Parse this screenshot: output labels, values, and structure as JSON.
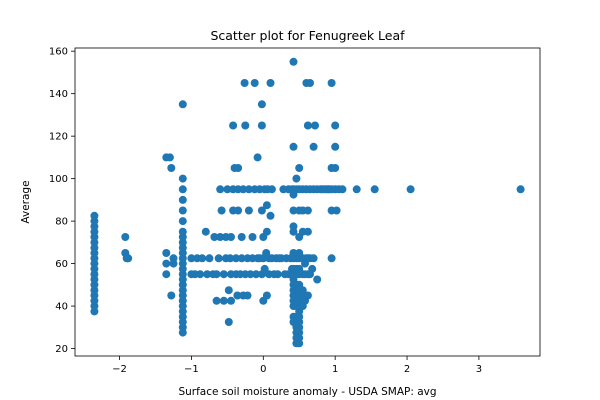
{
  "chart_data": {
    "type": "scatter",
    "title": "Scatter plot for Fenugreek Leaf",
    "xlabel": "Surface soil moisture anomaly  - USDA SMAP: avg",
    "ylabel": "Average",
    "xlim": [
      -2.62,
      3.85
    ],
    "ylim": [
      16.5,
      161.5
    ],
    "xticks": [
      -2,
      -1,
      0,
      1,
      2,
      3
    ],
    "yticks": [
      20,
      40,
      60,
      80,
      100,
      120,
      140,
      160
    ],
    "xtick_labels": [
      "−2",
      "−1",
      "0",
      "1",
      "2",
      "3"
    ],
    "ytick_labels": [
      "20",
      "40",
      "60",
      "80",
      "100",
      "120",
      "140",
      "160"
    ],
    "grid": false,
    "color": "#1f77b4",
    "series": [
      {
        "points": [
          [
            -2.35,
            37.5
          ],
          [
            -2.35,
            40
          ],
          [
            -2.35,
            42.5
          ],
          [
            -2.35,
            45
          ],
          [
            -2.35,
            47.5
          ],
          [
            -2.35,
            50
          ],
          [
            -2.35,
            52.5
          ],
          [
            -2.35,
            55
          ],
          [
            -2.35,
            57.5
          ],
          [
            -2.35,
            60
          ],
          [
            -2.35,
            62.5
          ],
          [
            -2.35,
            65
          ],
          [
            -2.35,
            67.5
          ],
          [
            -2.35,
            70
          ],
          [
            -2.35,
            72.5
          ],
          [
            -2.35,
            75
          ],
          [
            -2.35,
            77.5
          ],
          [
            -2.35,
            80
          ],
          [
            -2.35,
            82.5
          ],
          [
            -1.92,
            72.5
          ],
          [
            -1.92,
            65
          ],
          [
            -1.9,
            62.5
          ],
          [
            -1.88,
            62.5
          ],
          [
            -1.35,
            55
          ],
          [
            -1.35,
            60
          ],
          [
            -1.35,
            65
          ],
          [
            -1.35,
            110
          ],
          [
            -1.3,
            110
          ],
          [
            -1.28,
            105
          ],
          [
            -1.28,
            45
          ],
          [
            -1.25,
            62.5
          ],
          [
            -1.25,
            60
          ],
          [
            -1.12,
            27.5
          ],
          [
            -1.12,
            30
          ],
          [
            -1.12,
            32.5
          ],
          [
            -1.12,
            35
          ],
          [
            -1.12,
            37.5
          ],
          [
            -1.12,
            40
          ],
          [
            -1.12,
            42.5
          ],
          [
            -1.12,
            45
          ],
          [
            -1.12,
            47.5
          ],
          [
            -1.12,
            50
          ],
          [
            -1.12,
            52.5
          ],
          [
            -1.12,
            55
          ],
          [
            -1.12,
            57.5
          ],
          [
            -1.12,
            60
          ],
          [
            -1.12,
            62.5
          ],
          [
            -1.12,
            65
          ],
          [
            -1.12,
            67.5
          ],
          [
            -1.12,
            70
          ],
          [
            -1.12,
            72.5
          ],
          [
            -1.12,
            75
          ],
          [
            -1.12,
            80
          ],
          [
            -1.12,
            85
          ],
          [
            -1.12,
            90
          ],
          [
            -1.12,
            95
          ],
          [
            -1.12,
            100
          ],
          [
            -1.12,
            135
          ],
          [
            -1.0,
            55
          ],
          [
            -1.0,
            62.5
          ],
          [
            -0.95,
            55
          ],
          [
            -0.92,
            62.5
          ],
          [
            -0.88,
            55
          ],
          [
            -0.85,
            62.5
          ],
          [
            -0.8,
            75
          ],
          [
            -0.78,
            55
          ],
          [
            -0.75,
            62.5
          ],
          [
            -0.7,
            55
          ],
          [
            -0.68,
            72.5
          ],
          [
            -0.65,
            42.5
          ],
          [
            -0.65,
            55
          ],
          [
            -0.62,
            62.5
          ],
          [
            -0.6,
            72.5
          ],
          [
            -0.6,
            95
          ],
          [
            -0.58,
            85
          ],
          [
            -0.55,
            55
          ],
          [
            -0.55,
            42.5
          ],
          [
            -0.52,
            62.5
          ],
          [
            -0.52,
            72.5
          ],
          [
            -0.5,
            95
          ],
          [
            -0.48,
            32.5
          ],
          [
            -0.48,
            47.5
          ],
          [
            -0.46,
            62.5
          ],
          [
            -0.45,
            42.5
          ],
          [
            -0.45,
            55
          ],
          [
            -0.45,
            72.5
          ],
          [
            -0.42,
            85
          ],
          [
            -0.42,
            95
          ],
          [
            -0.42,
            125
          ],
          [
            -0.4,
            105
          ],
          [
            -0.38,
            55
          ],
          [
            -0.38,
            62.5
          ],
          [
            -0.36,
            45
          ],
          [
            -0.35,
            85
          ],
          [
            -0.35,
            95
          ],
          [
            -0.35,
            105
          ],
          [
            -0.32,
            55
          ],
          [
            -0.3,
            62.5
          ],
          [
            -0.3,
            72.5
          ],
          [
            -0.28,
            45
          ],
          [
            -0.28,
            95
          ],
          [
            -0.26,
            145
          ],
          [
            -0.25,
            55
          ],
          [
            -0.25,
            125
          ],
          [
            -0.22,
            45
          ],
          [
            -0.22,
            62.5
          ],
          [
            -0.2,
            85
          ],
          [
            -0.2,
            95
          ],
          [
            -0.18,
            55
          ],
          [
            -0.15,
            62.5
          ],
          [
            -0.15,
            72.5
          ],
          [
            -0.12,
            95
          ],
          [
            -0.12,
            145
          ],
          [
            -0.1,
            55
          ],
          [
            -0.08,
            62.5
          ],
          [
            -0.08,
            110
          ],
          [
            -0.05,
            95
          ],
          [
            -0.05,
            62.5
          ],
          [
            -0.02,
            55
          ],
          [
            -0.02,
            85
          ],
          [
            -0.02,
            125
          ],
          [
            -0.02,
            135
          ],
          [
            0.0,
            42.5
          ],
          [
            0.0,
            62.5
          ],
          [
            0.0,
            72.5
          ],
          [
            0.02,
            57.5
          ],
          [
            0.02,
            95
          ],
          [
            0.04,
            65
          ],
          [
            0.05,
            45
          ],
          [
            0.05,
            75
          ],
          [
            0.05,
            87.5
          ],
          [
            0.06,
            95
          ],
          [
            0.08,
            55
          ],
          [
            0.08,
            62.5
          ],
          [
            0.1,
            82.5
          ],
          [
            0.1,
            145
          ],
          [
            0.12,
            62.5
          ],
          [
            0.12,
            95
          ],
          [
            0.15,
            55
          ],
          [
            0.18,
            62.5
          ],
          [
            0.2,
            55
          ],
          [
            0.22,
            62.5
          ],
          [
            0.25,
            62.5
          ],
          [
            0.28,
            95
          ],
          [
            0.3,
            55
          ],
          [
            0.32,
            62.5
          ],
          [
            0.35,
            55
          ],
          [
            0.35,
            95
          ],
          [
            0.38,
            62.5
          ],
          [
            0.4,
            95
          ],
          [
            0.4,
            57.5
          ],
          [
            0.42,
            32.5
          ],
          [
            0.42,
            35
          ],
          [
            0.42,
            40
          ],
          [
            0.42,
            42.5
          ],
          [
            0.42,
            45
          ],
          [
            0.42,
            47.5
          ],
          [
            0.42,
            50
          ],
          [
            0.42,
            52.5
          ],
          [
            0.42,
            55
          ],
          [
            0.42,
            57.5
          ],
          [
            0.42,
            62.5
          ],
          [
            0.42,
            65
          ],
          [
            0.42,
            75
          ],
          [
            0.42,
            77.5
          ],
          [
            0.42,
            85
          ],
          [
            0.42,
            92.5
          ],
          [
            0.42,
            95
          ],
          [
            0.42,
            115
          ],
          [
            0.42,
            155
          ],
          [
            0.46,
            22.5
          ],
          [
            0.46,
            25
          ],
          [
            0.46,
            27.5
          ],
          [
            0.46,
            30
          ],
          [
            0.46,
            35
          ],
          [
            0.46,
            40
          ],
          [
            0.46,
            42.5
          ],
          [
            0.46,
            45
          ],
          [
            0.46,
            47.5
          ],
          [
            0.46,
            50
          ],
          [
            0.46,
            55
          ],
          [
            0.46,
            57.5
          ],
          [
            0.46,
            62.5
          ],
          [
            0.46,
            95
          ],
          [
            0.46,
            100
          ],
          [
            0.5,
            22.5
          ],
          [
            0.5,
            25
          ],
          [
            0.5,
            27.5
          ],
          [
            0.5,
            30
          ],
          [
            0.5,
            32.5
          ],
          [
            0.5,
            35
          ],
          [
            0.5,
            37.5
          ],
          [
            0.5,
            40
          ],
          [
            0.5,
            42.5
          ],
          [
            0.5,
            45
          ],
          [
            0.5,
            47.5
          ],
          [
            0.5,
            50
          ],
          [
            0.5,
            55
          ],
          [
            0.5,
            57.5
          ],
          [
            0.5,
            62.5
          ],
          [
            0.5,
            65
          ],
          [
            0.5,
            72.5
          ],
          [
            0.5,
            85
          ],
          [
            0.5,
            95
          ],
          [
            0.5,
            105
          ],
          [
            0.55,
            40
          ],
          [
            0.55,
            45
          ],
          [
            0.55,
            47.5
          ],
          [
            0.55,
            55
          ],
          [
            0.55,
            62.5
          ],
          [
            0.55,
            75
          ],
          [
            0.55,
            85
          ],
          [
            0.55,
            95
          ],
          [
            0.58,
            42.5
          ],
          [
            0.58,
            55
          ],
          [
            0.58,
            60
          ],
          [
            0.6,
            62.5
          ],
          [
            0.6,
            95
          ],
          [
            0.6,
            145
          ],
          [
            0.62,
            45
          ],
          [
            0.62,
            55
          ],
          [
            0.62,
            62.5
          ],
          [
            0.62,
            75
          ],
          [
            0.62,
            85
          ],
          [
            0.62,
            125
          ],
          [
            0.65,
            55
          ],
          [
            0.65,
            62.5
          ],
          [
            0.65,
            95
          ],
          [
            0.65,
            145
          ],
          [
            0.68,
            57.5
          ],
          [
            0.7,
            62.5
          ],
          [
            0.7,
            95
          ],
          [
            0.7,
            115
          ],
          [
            0.72,
            125
          ],
          [
            0.75,
            52.5
          ],
          [
            0.75,
            95
          ],
          [
            0.8,
            95
          ],
          [
            0.82,
            95
          ],
          [
            0.85,
            95
          ],
          [
            0.88,
            95
          ],
          [
            0.9,
            95
          ],
          [
            0.92,
            95
          ],
          [
            0.95,
            62.5
          ],
          [
            0.95,
            85
          ],
          [
            0.95,
            95
          ],
          [
            0.95,
            105
          ],
          [
            0.95,
            145
          ],
          [
            1.0,
            95
          ],
          [
            1.0,
            105
          ],
          [
            1.0,
            115
          ],
          [
            1.0,
            125
          ],
          [
            1.02,
            85
          ],
          [
            1.05,
            95
          ],
          [
            1.1,
            95
          ],
          [
            1.3,
            95
          ],
          [
            1.55,
            95
          ],
          [
            2.05,
            95
          ],
          [
            3.58,
            95
          ]
        ]
      }
    ]
  }
}
